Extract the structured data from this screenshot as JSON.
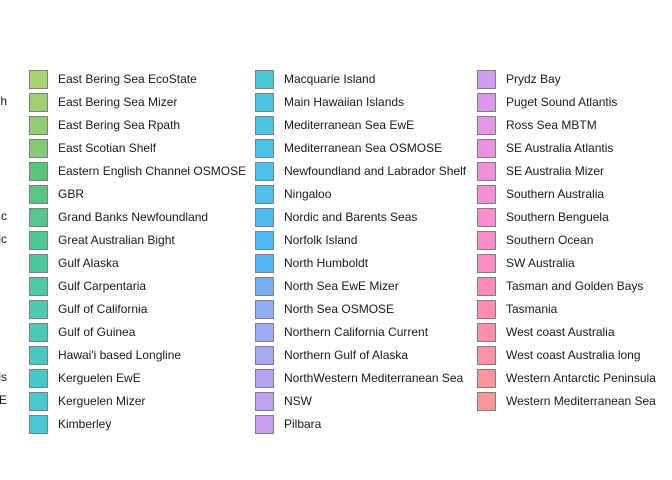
{
  "chart_data": {
    "type": "legend",
    "title": "",
    "partial_column_fragments": [
      "sh",
      "c",
      "ic",
      "antis",
      "E"
    ],
    "columns": [
      {
        "entries": [
          {
            "label": "East Bering Sea EcoState",
            "color": "#8cc63f"
          },
          {
            "label": "East Bering Sea Mizer",
            "color": "#7dc241"
          },
          {
            "label": "East Bering Sea Rpath",
            "color": "#6dbd46"
          },
          {
            "label": "East Scotian Shelf",
            "color": "#5bb84b"
          },
          {
            "label": "Eastern English Channel OSMOSE",
            "color": "#21b24b"
          },
          {
            "label": "GBR",
            "color": "#22b55a"
          },
          {
            "label": "Grand Banks Newfoundland",
            "color": "#1eb564"
          },
          {
            "label": "Great Australian Bight",
            "color": "#14b56e"
          },
          {
            "label": "Gulf Alaska",
            "color": "#10b67a"
          },
          {
            "label": "Gulf Carpentaria",
            "color": "#12b886"
          },
          {
            "label": "Gulf of California",
            "color": "#12b894"
          },
          {
            "label": "Gulf of Guinea",
            "color": "#10b8a0"
          },
          {
            "label": "Hawai'i based Longline",
            "color": "#0db8ad"
          },
          {
            "label": "Kerguelen EwE",
            "color": "#0bb8b8"
          },
          {
            "label": "Kerguelen Mizer",
            "color": "#0ab8c0"
          },
          {
            "label": "Kimberley",
            "color": "#08b7c6"
          }
        ]
      },
      {
        "entries": [
          {
            "label": "Macquarie Island",
            "color": "#0bb6cc"
          },
          {
            "label": "Main Hawaiian Islands",
            "color": "#0cb4d2"
          },
          {
            "label": "Mediterranean Sea EwE",
            "color": "#0db2d8"
          },
          {
            "label": "Mediterranean Sea OSMOSE",
            "color": "#0eb0de"
          },
          {
            "label": "Newfoundland and Labrador Shelf",
            "color": "#10aee4"
          },
          {
            "label": "Ningaloo",
            "color": "#12acea"
          },
          {
            "label": "Nordic and Barents Seas",
            "color": "#14a8ef"
          },
          {
            "label": "Norfolk Island",
            "color": "#16a2f2"
          },
          {
            "label": "North Humboldt",
            "color": "#1a9cf5"
          },
          {
            "label": "North Sea EwE Mizer",
            "color": "#4a98f2"
          },
          {
            "label": "North Sea OSMOSE",
            "color": "#6c94f0"
          },
          {
            "label": "Northern California Current",
            "color": "#7e8ff0"
          },
          {
            "label": "Northern Gulf of Alaska",
            "color": "#8e8af0"
          },
          {
            "label": "NorthWestern Mediterranean Sea",
            "color": "#9c86f0"
          },
          {
            "label": "NSW",
            "color": "#aa82ee"
          },
          {
            "label": "Pilbara",
            "color": "#b87eec"
          }
        ]
      },
      {
        "entries": [
          {
            "label": "Prydz Bay",
            "color": "#c47ae8"
          },
          {
            "label": "Puget Sound Atlantis",
            "color": "#d076e4"
          },
          {
            "label": "Ross Sea MBTM",
            "color": "#da72de"
          },
          {
            "label": "SE Australia Atlantis",
            "color": "#e46ed8"
          },
          {
            "label": "SE Australia Mizer",
            "color": "#ec6cd0"
          },
          {
            "label": "Southern Australia",
            "color": "#f26ac8"
          },
          {
            "label": "Southern Benguela",
            "color": "#f668c0"
          },
          {
            "label": "Southern Ocean",
            "color": "#f866b6"
          },
          {
            "label": "SW Australia",
            "color": "#fa66ac"
          },
          {
            "label": "Tasman and Golden Bays",
            "color": "#fa66a2"
          },
          {
            "label": "Tasmania",
            "color": "#fa6898"
          },
          {
            "label": "West coast Australia",
            "color": "#f86a8e"
          },
          {
            "label": "West coast Australia long",
            "color": "#f86e86"
          },
          {
            "label": "Western Antarctic Peninsula",
            "color": "#f6727e"
          },
          {
            "label": "Western Mediterranean Sea",
            "color": "#f47676"
          }
        ]
      }
    ]
  }
}
